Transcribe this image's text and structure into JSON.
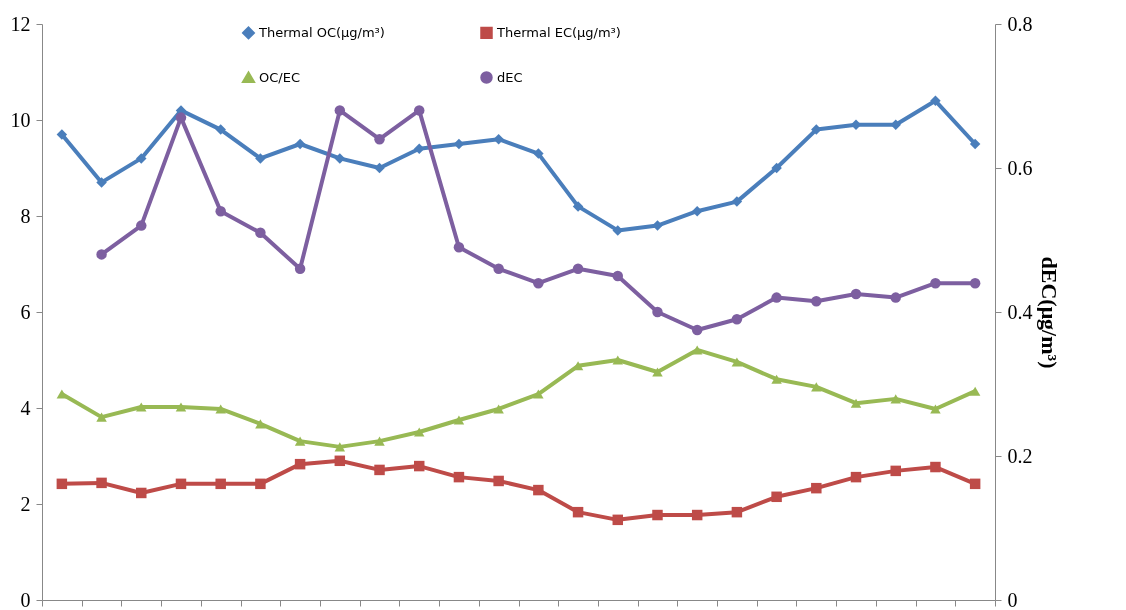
{
  "chart_data": {
    "type": "line",
    "categories": [
      null,
      null,
      null,
      null,
      null,
      null,
      null,
      null,
      null,
      null,
      null,
      null,
      null,
      null,
      null,
      null,
      null,
      null,
      null,
      null,
      null,
      null,
      null,
      null
    ],
    "series": [
      {
        "name": "Thermal OC(μg/m³)",
        "color": "#4a7ebb",
        "marker": "diamond",
        "values": [
          9.7,
          8.7,
          9.2,
          10.2,
          9.8,
          9.2,
          9.5,
          9.2,
          9.0,
          9.4,
          9.5,
          9.6,
          9.3,
          8.2,
          7.7,
          7.8,
          8.1,
          8.3,
          9.0,
          9.8,
          9.9,
          9.9,
          10.4,
          9.5
        ]
      },
      {
        "name": "Thermal EC(μg/m³)",
        "color": "#be4b48",
        "marker": "square",
        "values": [
          2.42,
          2.44,
          2.23,
          2.42,
          2.42,
          2.42,
          2.83,
          2.9,
          2.71,
          2.79,
          2.56,
          2.48,
          2.29,
          1.83,
          1.67,
          1.77,
          1.77,
          1.83,
          2.15,
          2.33,
          2.56,
          2.69,
          2.77,
          2.42
        ]
      },
      {
        "name": "OC/EC",
        "color": "#98b954",
        "marker": "triangle",
        "values": [
          4.29,
          3.81,
          4.02,
          4.02,
          3.98,
          3.67,
          3.31,
          3.19,
          3.31,
          3.5,
          3.75,
          3.98,
          4.29,
          4.88,
          5.0,
          4.75,
          5.21,
          4.96,
          4.6,
          4.44,
          4.1,
          4.19,
          3.98,
          4.35
        ]
      },
      {
        "name": "dEC",
        "color": "#7d5fa0",
        "marker": "circle",
        "axis": "y2",
        "values": [
          null,
          0.48,
          0.52,
          0.67,
          0.54,
          0.51,
          0.46,
          0.68,
          0.64,
          0.68,
          0.49,
          0.46,
          0.44,
          0.46,
          0.45,
          0.4,
          0.375,
          0.39,
          0.42,
          0.415,
          0.425,
          0.42,
          0.44,
          0.44
        ]
      }
    ],
    "ylim": [
      0,
      12
    ],
    "yticks": [
      0,
      2,
      4,
      6,
      8,
      10,
      12
    ],
    "y2lim": [
      0,
      0.8
    ],
    "y2ticks": [
      0,
      0.2,
      0.4,
      0.6,
      0.8
    ],
    "y2label": "dEC(μg/m³)",
    "legend": "top",
    "grid": false
  }
}
